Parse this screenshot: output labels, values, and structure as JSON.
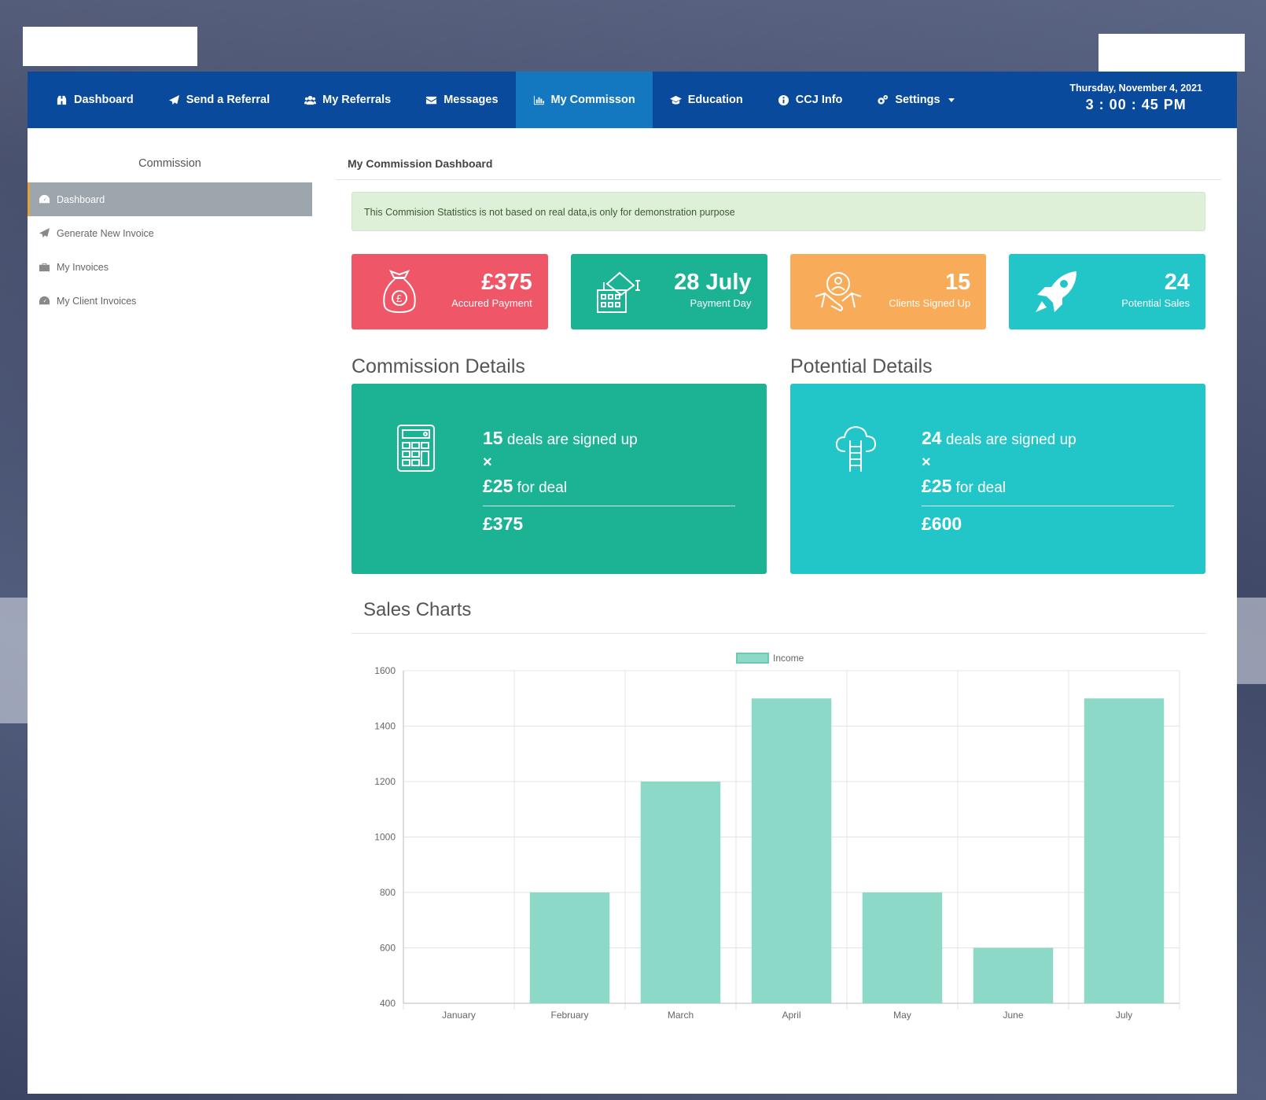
{
  "nav": {
    "items": [
      {
        "label": "Dashboard",
        "icon": "binoculars-icon"
      },
      {
        "label": "Send a Referral",
        "icon": "paper-plane-icon"
      },
      {
        "label": "My Referrals",
        "icon": "users-icon"
      },
      {
        "label": "Messages",
        "icon": "envelope-icon"
      },
      {
        "label": "My Commisson",
        "icon": "bar-chart-icon"
      },
      {
        "label": "Education",
        "icon": "graduation-cap-icon"
      },
      {
        "label": "CCJ Info",
        "icon": "info-circle-icon"
      },
      {
        "label": "Settings",
        "icon": "cogs-icon"
      }
    ],
    "active_index": 4,
    "date": "Thursday, November 4, 2021",
    "time": "3 : 00 : 45 PM",
    "color": "#0a4a9c",
    "active_color": "#1478c0"
  },
  "sidebar": {
    "title": "Commission",
    "items": [
      {
        "label": "Dashboard",
        "icon": "tachometer-icon"
      },
      {
        "label": "Generate New Invoice",
        "icon": "paper-plane-icon"
      },
      {
        "label": "My Invoices",
        "icon": "briefcase-icon"
      },
      {
        "label": "My Client Invoices",
        "icon": "tachometer-icon"
      }
    ],
    "active_index": 0
  },
  "main": {
    "heading": "My Commission Dashboard",
    "alert": "This Commision Statistics is not based on real data,is only for demonstration purpose",
    "stats": [
      {
        "value": "£375",
        "label": "Accured Payment",
        "icon": "money-bag-icon",
        "color": "#ef5668"
      },
      {
        "value": "28 July",
        "label": "Payment Day",
        "icon": "cash-building-icon",
        "color": "#1bb394"
      },
      {
        "value": "15",
        "label": "Clients Signed Up",
        "icon": "handshake-gear-icon",
        "color": "#f8ac59"
      },
      {
        "value": "24",
        "label": "Potential Sales",
        "icon": "rocket-icon",
        "color": "#23c6c8"
      }
    ],
    "commission": {
      "title": "Commission Details",
      "count": "15",
      "count_text": "deals are signed up",
      "times": "×",
      "rate": "£25",
      "rate_text": "for deal",
      "total": "£375",
      "icon": "calculator-icon"
    },
    "potential": {
      "title": "Potential Details",
      "count": "24",
      "count_text": "deals are signed up",
      "times": "×",
      "rate": "£25",
      "rate_text": "for deal",
      "total": "£600",
      "icon": "cloud-ladder-icon"
    },
    "charts_title": "Sales Charts"
  },
  "chart_data": {
    "type": "bar",
    "categories": [
      "January",
      "February",
      "March",
      "April",
      "May",
      "June",
      "July"
    ],
    "series": [
      {
        "name": "Income",
        "values": [
          400,
          800,
          1200,
          1500,
          800,
          600,
          1500
        ],
        "color": "#8dd9c8"
      }
    ],
    "ylim": [
      400,
      1600
    ],
    "yticks": [
      400,
      600,
      800,
      1000,
      1200,
      1400,
      1600
    ],
    "grid": true,
    "legend": "top-center"
  }
}
